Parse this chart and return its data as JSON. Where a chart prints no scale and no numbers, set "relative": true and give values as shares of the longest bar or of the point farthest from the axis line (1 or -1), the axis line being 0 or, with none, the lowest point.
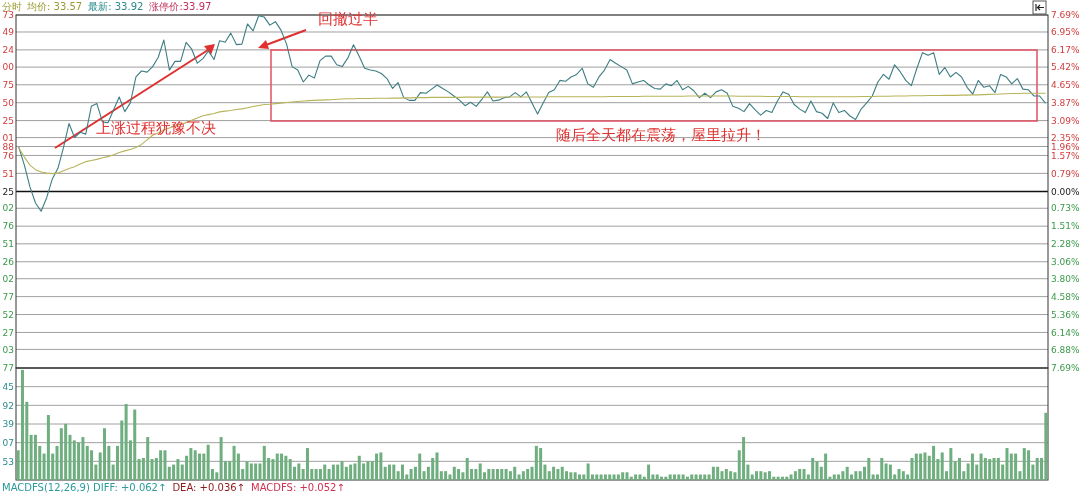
{
  "chart_data": [
    {
      "type": "line",
      "title": "分时",
      "categories": [
        null,
        null,
        null,
        null,
        null,
        null,
        null,
        null,
        null,
        null,
        null,
        null,
        null,
        null,
        null,
        null,
        null,
        null,
        null,
        null,
        null,
        null,
        null,
        null,
        null,
        null,
        null,
        null,
        null,
        null,
        null,
        null,
        null,
        null,
        null,
        null,
        null,
        null,
        null,
        null,
        null,
        null,
        null,
        null,
        null,
        null,
        null,
        null,
        null,
        null,
        null,
        null,
        null,
        null,
        null,
        null,
        null,
        null,
        null,
        null,
        null,
        null,
        null,
        null,
        null,
        null,
        null,
        null,
        null,
        null,
        null,
        null,
        null,
        null,
        null,
        null,
        null,
        null,
        null,
        null,
        null,
        null,
        null,
        null,
        null,
        null,
        null,
        null,
        null,
        null,
        null,
        null,
        null,
        null,
        null,
        null,
        null,
        null,
        null,
        null,
        null,
        null,
        null,
        null,
        null,
        null,
        null,
        null,
        null,
        null,
        null,
        null,
        null,
        null,
        null,
        null,
        null,
        null,
        null,
        null,
        null,
        null,
        null,
        null,
        null,
        null,
        null,
        null,
        null,
        null,
        null,
        null,
        null,
        null,
        null,
        null,
        null,
        null,
        null,
        null,
        null,
        null,
        null,
        null,
        null,
        null,
        null,
        null,
        null,
        null,
        null,
        null,
        null,
        null,
        null,
        null,
        null,
        null,
        null,
        null,
        null,
        null,
        null,
        null,
        null,
        null,
        null,
        null,
        null,
        null,
        null,
        null,
        null,
        null,
        null,
        null,
        null,
        null,
        null,
        null,
        null,
        null,
        null,
        null,
        null
      ],
      "series": [
        {
          "color": "#3d7d83",
          "values": [
            1.93,
            1.15,
            0.2,
            -0.5,
            -0.86,
            -0.27,
            0.54,
            1.0,
            1.9,
            2.96,
            2.35,
            2.58,
            2.5,
            3.71,
            3.83,
            3.03,
            3.0,
            3.56,
            4.12,
            3.48,
            3.86,
            4.99,
            5.25,
            5.2,
            5.44,
            5.85,
            6.6,
            5.29,
            5.67,
            5.67,
            6.5,
            6.2,
            5.59,
            5.79,
            6.12,
            5.75,
            6.57,
            6.5,
            6.9,
            6.4,
            6.42,
            7.3,
            7.0,
            7.66,
            7.6,
            7.25,
            7.4,
            7.03,
            6.42,
            5.44,
            5.29,
            4.77,
            5.07,
            4.95,
            5.7,
            5.9,
            5.9,
            5.52,
            5.45,
            5.82,
            6.39,
            5.9,
            5.37,
            5.29,
            5.25,
            5.14,
            4.92,
            4.49,
            4.74,
            4.09,
            3.97,
            3.97,
            4.31,
            4.28,
            4.46,
            4.64,
            4.49,
            4.34,
            4.16,
            3.98,
            3.74,
            3.89,
            3.71,
            4.01,
            4.34,
            3.94,
            3.98,
            4.09,
            4.12,
            4.31,
            4.12,
            4.34,
            3.86,
            3.38,
            3.86,
            4.31,
            4.43,
            4.84,
            4.8,
            4.99,
            5.1,
            5.37,
            4.69,
            4.54,
            4.99,
            5.29,
            5.75,
            5.59,
            5.44,
            5.29,
            4.69,
            4.77,
            4.84,
            4.64,
            4.49,
            4.46,
            4.69,
            4.61,
            4.84,
            4.43,
            4.58,
            4.39,
            4.09,
            4.28,
            4.09,
            4.34,
            4.43,
            4.28,
            3.71,
            3.63,
            3.48,
            3.83,
            3.56,
            3.33,
            3.53,
            3.44,
            3.94,
            4.34,
            4.24,
            3.79,
            3.59,
            3.44,
            3.94,
            3.48,
            3.41,
            3.18,
            3.86,
            3.44,
            3.53,
            3.29,
            3.14,
            3.59,
            3.86,
            4.16,
            4.77,
            5.1,
            4.89,
            5.52,
            5.22,
            4.84,
            4.61,
            5.37,
            6.05,
            5.94,
            6.05,
            5.1,
            5.4,
            4.99,
            5.19,
            4.99,
            4.54,
            4.24,
            4.84,
            4.54,
            4.61,
            4.31,
            5.1,
            4.99,
            4.69,
            4.92,
            4.46,
            4.43,
            4.16,
            4.16,
            3.86
          ]
        },
        {
          "color": "#b8b45a",
          "values": [
            1.9,
            1.5,
            1.15,
            0.95,
            0.85,
            0.8,
            0.78,
            0.8,
            0.9,
            1.0,
            1.08,
            1.2,
            1.3,
            1.35,
            1.4,
            1.47,
            1.52,
            1.6,
            1.7,
            1.77,
            1.83,
            1.92,
            2.05,
            2.25,
            2.45,
            2.55,
            2.68,
            2.77,
            2.85,
            2.92,
            3.0,
            3.1,
            3.2,
            3.3,
            3.35,
            3.4,
            3.47,
            3.5,
            3.53,
            3.57,
            3.6,
            3.65,
            3.7,
            3.75,
            3.79,
            3.8,
            3.83,
            3.85,
            3.88,
            3.9,
            3.92,
            3.94,
            3.96,
            3.97,
            3.98,
            3.99,
            4.0,
            4.02,
            4.03,
            4.04,
            4.04,
            4.05,
            4.05,
            4.05,
            4.06,
            4.06,
            4.06,
            4.07,
            4.07,
            4.08,
            4.08,
            4.09,
            4.09,
            4.09,
            4.1,
            4.1,
            4.1,
            4.1,
            4.1,
            4.1,
            4.11,
            4.11,
            4.11,
            4.11,
            4.11,
            4.11,
            4.11,
            4.12,
            4.12,
            4.12,
            4.12,
            4.12,
            4.12,
            4.12,
            4.12,
            4.13,
            4.13,
            4.13,
            4.13,
            4.13,
            4.13,
            4.13,
            4.13,
            4.13,
            4.13,
            4.13,
            4.14,
            4.14,
            4.14,
            4.14,
            4.14,
            4.14,
            4.15,
            4.15,
            4.15,
            4.15,
            4.15,
            4.15,
            4.15,
            4.15,
            4.16,
            4.16,
            4.16,
            4.16,
            4.16,
            4.16,
            4.16,
            4.16,
            4.16,
            4.15,
            4.15,
            4.15,
            4.15,
            4.15,
            4.14,
            4.14,
            4.14,
            4.14,
            4.14,
            4.14,
            4.13,
            4.13,
            4.13,
            4.13,
            4.13,
            4.13,
            4.13,
            4.13,
            4.13,
            4.13,
            4.13,
            4.14,
            4.14,
            4.14,
            4.15,
            4.15,
            4.15,
            4.16,
            4.16,
            4.16,
            4.17,
            4.17,
            4.17,
            4.18,
            4.18,
            4.18,
            4.19,
            4.19,
            4.19,
            4.2,
            4.2,
            4.21,
            4.21,
            4.22,
            4.23,
            4.24,
            4.25,
            4.26,
            4.27,
            4.27,
            4.28,
            4.28,
            4.28,
            4.28,
            4.28
          ]
        }
      ],
      "ylim": [
        -7.69,
        7.69
      ],
      "yticks": [
        {
          "value": 7.69,
          "label": "7.69%"
        },
        {
          "value": 6.95,
          "label": "6.95%"
        },
        {
          "value": 6.17,
          "label": "6.17%"
        },
        {
          "value": 5.42,
          "label": "5.42%"
        },
        {
          "value": 4.65,
          "label": "4.65%"
        },
        {
          "value": 3.87,
          "label": "3.87%"
        },
        {
          "value": 3.09,
          "label": "3.09%"
        },
        {
          "value": 2.35,
          "label": "2.35%"
        },
        {
          "value": 1.96,
          "label": "1.96%"
        },
        {
          "value": 1.57,
          "label": "1.57%"
        },
        {
          "value": 0.79,
          "label": "0.79%"
        },
        {
          "value": 0,
          "label": "0.00%"
        },
        {
          "value": -0.73,
          "label": "0.73%"
        },
        {
          "value": -1.51,
          "label": "1.51%"
        },
        {
          "value": -2.28,
          "label": "2.28%"
        },
        {
          "value": -3.06,
          "label": "3.06%"
        },
        {
          "value": -3.8,
          "label": "3.80%"
        },
        {
          "value": -4.58,
          "label": "4.58%"
        },
        {
          "value": -5.36,
          "label": "5.36%"
        },
        {
          "value": -6.14,
          "label": "6.14%"
        },
        {
          "value": -6.88,
          "label": "6.88%"
        },
        {
          "value": -7.69,
          "label": "7.69%"
        }
      ],
      "grid": "y",
      "annotations": [
        "73",
        "49",
        "24",
        "00",
        "75",
        "50",
        "25",
        "01",
        "88",
        "76",
        "51",
        "25",
        "02",
        "76",
        "51",
        "26",
        "02",
        "77",
        "52",
        "27",
        "03",
        "77",
        "均价: 33.57",
        "最新: 33.92",
        "涨停价:33.97",
        "回撤过半",
        "上涨过程犹豫不决",
        "随后全天都在震荡，屋里拉升！"
      ]
    },
    {
      "type": "bar",
      "categories": [
        null,
        null,
        null,
        null,
        null,
        null,
        null,
        null,
        null,
        null,
        null,
        null,
        null,
        null,
        null,
        null,
        null,
        null,
        null,
        null,
        null,
        null,
        null,
        null,
        null,
        null,
        null,
        null,
        null,
        null,
        null,
        null,
        null,
        null,
        null,
        null,
        null,
        null,
        null,
        null,
        null,
        null,
        null,
        null,
        null,
        null,
        null,
        null,
        null,
        null,
        null,
        null,
        null,
        null,
        null,
        null,
        null,
        null,
        null,
        null,
        null,
        null,
        null,
        null,
        null,
        null,
        null,
        null,
        null,
        null,
        null,
        null,
        null,
        null,
        null,
        null,
        null,
        null,
        null,
        null,
        null,
        null,
        null,
        null,
        null,
        null,
        null,
        null,
        null,
        null,
        null,
        null,
        null,
        null,
        null,
        null,
        null,
        null,
        null,
        null,
        null,
        null,
        null,
        null,
        null,
        null,
        null,
        null,
        null,
        null,
        null,
        null,
        null,
        null,
        null,
        null,
        null,
        null,
        null,
        null,
        null,
        null,
        null,
        null,
        null,
        null,
        null,
        null,
        null,
        null,
        null,
        null,
        null,
        null,
        null,
        null,
        null,
        null,
        null,
        null,
        null,
        null,
        null,
        null,
        null,
        null,
        null,
        null,
        null,
        null,
        null,
        null,
        null,
        null,
        null,
        null,
        null,
        null,
        null,
        null,
        null,
        null,
        null,
        null,
        null,
        null,
        null,
        null,
        null,
        null,
        null,
        null,
        null,
        null,
        null,
        null,
        null,
        null,
        null,
        null,
        null,
        null,
        null,
        null,
        null,
        null,
        null,
        null,
        null,
        null,
        null,
        null,
        null,
        null,
        null,
        null,
        null,
        null,
        null,
        null,
        null,
        null,
        null,
        null,
        null,
        null,
        null,
        null,
        null,
        null,
        null,
        null,
        null,
        null,
        null,
        null,
        null,
        null,
        null,
        null,
        null,
        null,
        null,
        null,
        null,
        null,
        null,
        null,
        null,
        null,
        null,
        null,
        null,
        null,
        null,
        null,
        null,
        null,
        null
      ],
      "values": [
        0.27,
        1,
        0.71,
        0.41,
        0.41,
        0.31,
        0.24,
        0.59,
        0.24,
        0.31,
        0.47,
        0.51,
        0.41,
        0.36,
        0.34,
        0.39,
        0.31,
        0.27,
        0.14,
        0.25,
        0.47,
        0.31,
        0.14,
        0.31,
        0.54,
        0.69,
        0.36,
        0.64,
        0.19,
        0.2,
        0.39,
        0.19,
        0.2,
        0.27,
        0.27,
        0.12,
        0.14,
        0.19,
        0.14,
        0.22,
        0.29,
        0.27,
        0.24,
        0.24,
        0.32,
        0.1,
        0.07,
        0.39,
        0.17,
        0.17,
        0.31,
        0.24,
        0.1,
        0.17,
        0.15,
        0.15,
        0.15,
        0.31,
        0.2,
        0.19,
        0.24,
        0.24,
        0.22,
        0.19,
        0.12,
        0.15,
        0.1,
        0.29,
        0.1,
        0.1,
        0.1,
        0.14,
        0.1,
        0.14,
        0.14,
        0.17,
        0.12,
        0.14,
        0.15,
        0.22,
        0.15,
        0.17,
        0.17,
        0.24,
        0.25,
        0.12,
        0.14,
        0.14,
        0.08,
        0.14,
        0.05,
        0.1,
        0.12,
        0.24,
        0.08,
        0.12,
        0.2,
        0.25,
        0.08,
        0.08,
        0.05,
        0.12,
        0.1,
        0.07,
        0.2,
        0.1,
        0.1,
        0.15,
        0.07,
        0.1,
        0.1,
        0.1,
        0.1,
        0.1,
        0.08,
        0.12,
        0.05,
        0.08,
        0.1,
        0.12,
        0.31,
        0.29,
        0.14,
        0.08,
        0.12,
        0.1,
        0.12,
        0.08,
        0.07,
        0.07,
        0.05,
        0.05,
        0.15,
        0.05,
        0.05,
        0.05,
        0.05,
        0.05,
        0.05,
        0.05,
        0.07,
        0.07,
        0.03,
        0.05,
        0.05,
        0.03,
        0.14,
        0.05,
        0.05,
        0.03,
        0.03,
        0.05,
        0.05,
        0.05,
        0.05,
        0.03,
        0.05,
        0.05,
        0.05,
        0.05,
        0.05,
        0.12,
        0.12,
        0.08,
        0.1,
        0.08,
        0.07,
        0.27,
        0.39,
        0.14,
        0.05,
        0.08,
        0.08,
        0.07,
        0.08,
        0.03,
        0.03,
        0.03,
        0.03,
        0.05,
        0.08,
        0.1,
        0.1,
        0.05,
        0.2,
        0.17,
        0.12,
        0.24,
        0.03,
        0.05,
        0.05,
        0.08,
        0.12,
        0.05,
        0.08,
        0.08,
        0.12,
        0.2,
        0.05,
        0.05,
        0.2,
        0.15,
        0.14,
        0.05,
        0.1,
        0.08,
        0.05,
        0.2,
        0.24,
        0.24,
        0.25,
        0.22,
        0.31,
        0.19,
        0.25,
        0.08,
        0.29,
        0.17,
        0.2,
        0.08,
        0.15,
        0.24,
        0.14,
        0.24,
        0.2,
        0.19,
        0.2,
        0.2,
        0.14,
        0.29,
        0.24,
        0.24,
        0.08,
        0.29,
        0.27,
        0.14,
        0.2,
        0.2,
        0.61
      ],
      "color": "#6fae7e",
      "relative": true,
      "grid": "y",
      "annotations": [
        "53",
        "07",
        "39",
        "92",
        "45",
        "MACDFS(12,26,9) DIFF: +0.062↑",
        "DEA: +0.036↑",
        "MACDFS: +0.052↑"
      ]
    }
  ]
}
